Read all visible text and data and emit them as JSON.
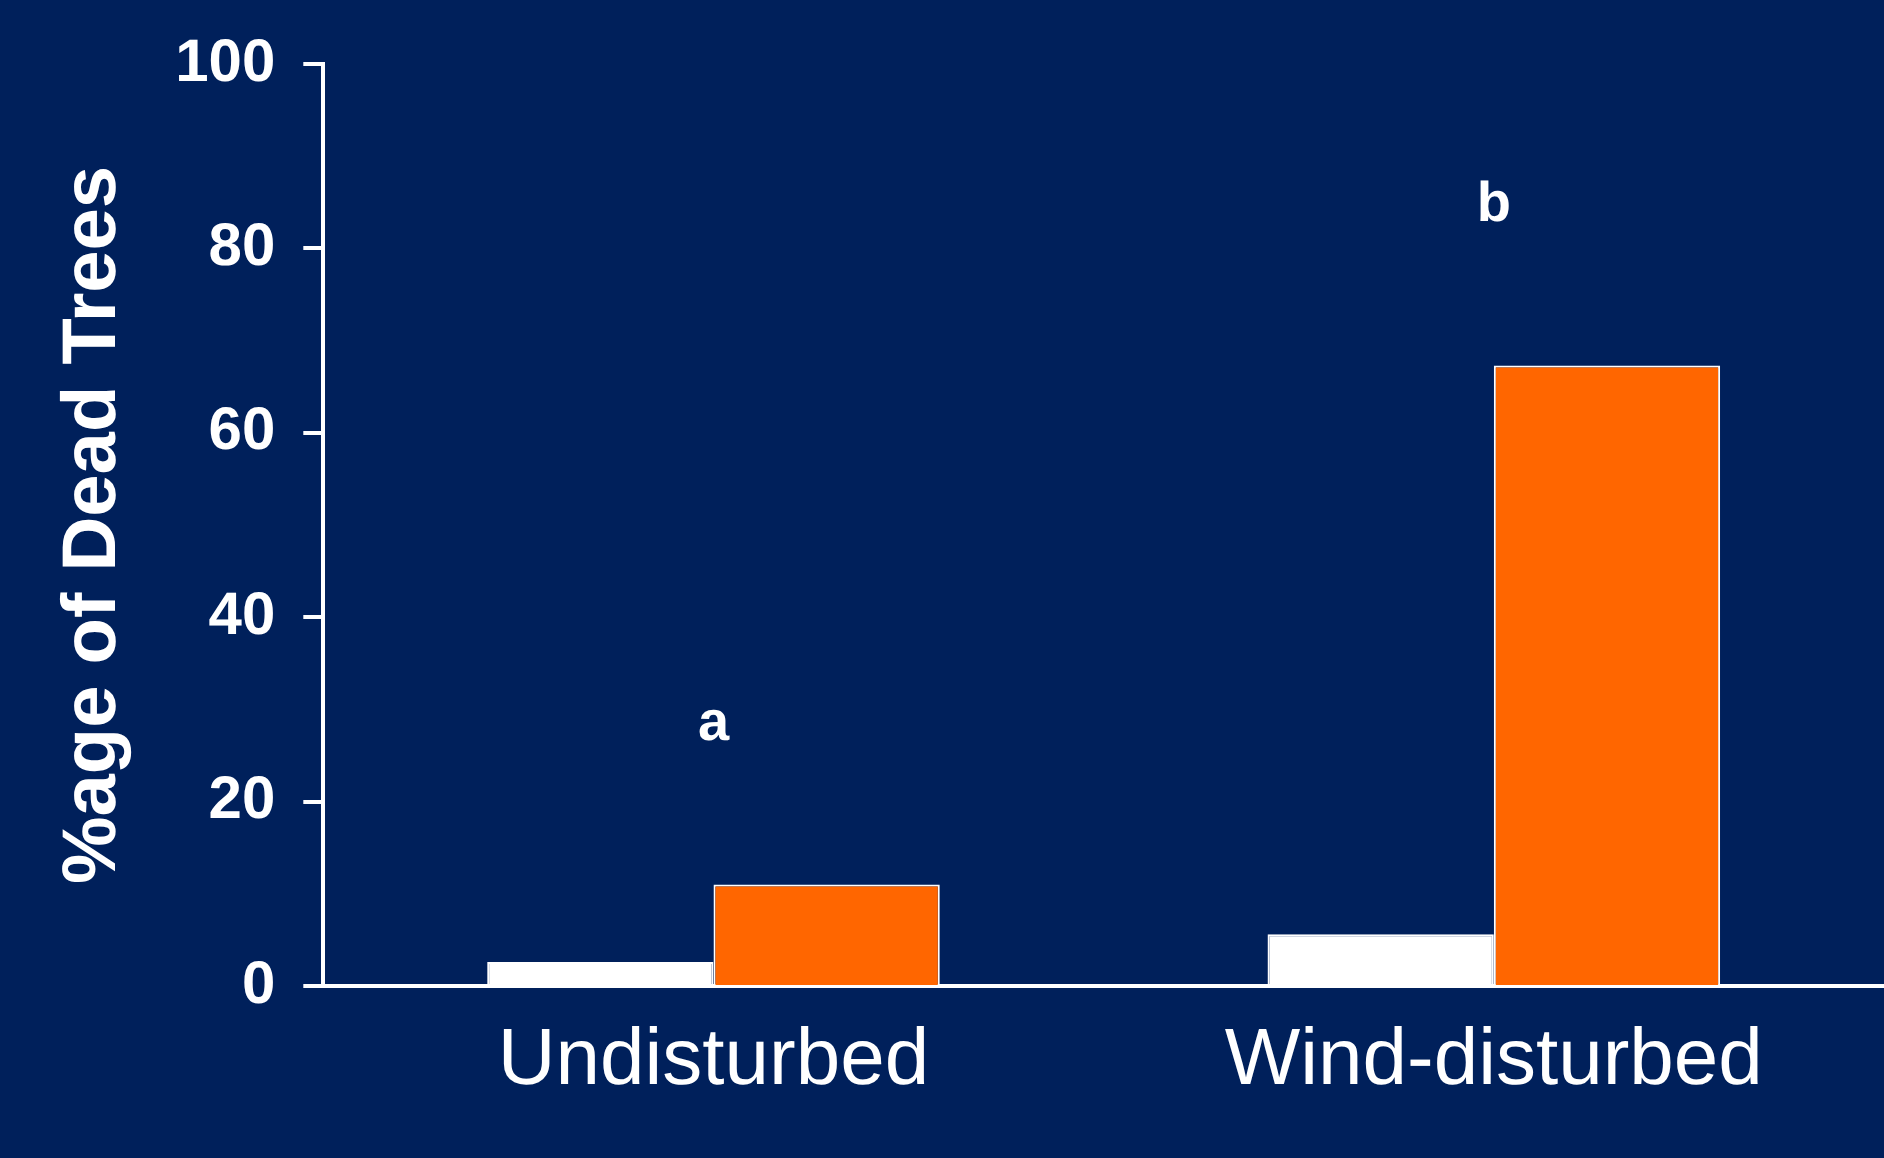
{
  "chart_data": {
    "type": "bar",
    "ylabel": "%age of Dead Trees",
    "categories": [
      "Undisturbed",
      "Wind-disturbed"
    ],
    "series": [
      {
        "color": "#ffffff",
        "values": [
          2.6,
          5.6
        ]
      },
      {
        "color": "#ff6600",
        "values": [
          11,
          67.3
        ]
      }
    ],
    "ylim": [
      0,
      100
    ],
    "yticks": [
      0,
      20,
      40,
      60,
      80,
      100
    ],
    "grid": false,
    "legend": false,
    "annotations": [
      "a",
      "b"
    ]
  }
}
